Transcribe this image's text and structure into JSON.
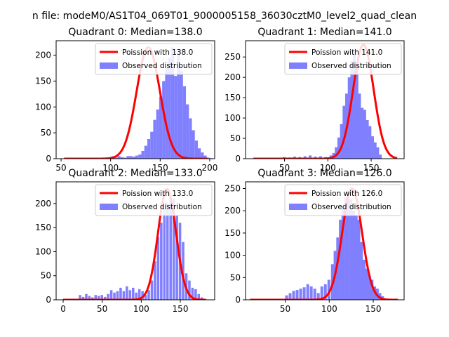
{
  "figure": {
    "suptitle": "n file: modeM0/AS1T04_069T01_9000005158_36030cztM0_level2_quad_clean"
  },
  "colors": {
    "hist": "#8080ff",
    "curve": "#ff0000",
    "axis": "#000000"
  },
  "chart_data": [
    {
      "type": "histogram",
      "title": "Quadrant 0: Median=138.0",
      "median": 138.0,
      "xlim": [
        45,
        205
      ],
      "ylim": [
        0,
        228
      ],
      "xticks": [
        50,
        100,
        150,
        200
      ],
      "yticks": [
        0,
        50,
        100,
        150,
        200
      ],
      "legend": {
        "placement": "upper right",
        "curve_label": "Poission with 138.0",
        "hist_label": "Observed distribution"
      },
      "hist_bins": {
        "start": 53,
        "width": 3.0,
        "counts": [
          0,
          0,
          0,
          0,
          0,
          0,
          0,
          0,
          0,
          0,
          0,
          0,
          0,
          0,
          0,
          0,
          5,
          2,
          5,
          3,
          2,
          5,
          5,
          4,
          6,
          8,
          15,
          25,
          38,
          52,
          75,
          95,
          120,
          150,
          175,
          195,
          215,
          160,
          210,
          170,
          140,
          105,
          78,
          55,
          35,
          20,
          12,
          6,
          2,
          1,
          0,
          0,
          0,
          0,
          0,
          0,
          0,
          0,
          0,
          0,
          0,
          0,
          0,
          0,
          0,
          0
        ]
      },
      "curve": {
        "x_start": 53,
        "x_end": 198,
        "peak": 215
      }
    },
    {
      "type": "histogram",
      "title": "Quadrant 1: Median=141.0",
      "median": 141.0,
      "xlim": [
        5,
        188
      ],
      "ylim": [
        0,
        290
      ],
      "xticks": [
        50,
        100,
        150
      ],
      "yticks": [
        0,
        50,
        100,
        150,
        200,
        250
      ],
      "legend": {
        "placement": "upper right",
        "curve_label": "Poission with 141.0",
        "hist_label": "Observed distribution"
      },
      "hist_bins": {
        "start": 14,
        "width": 3.0,
        "counts": [
          0,
          0,
          0,
          0,
          0,
          0,
          0,
          0,
          0,
          0,
          0,
          0,
          0,
          0,
          0,
          0,
          0,
          0,
          0,
          0,
          0,
          0,
          0,
          0,
          0,
          0,
          0,
          0,
          0,
          0,
          0,
          0,
          0,
          0,
          0,
          0,
          0,
          0,
          0,
          0,
          0,
          0,
          0,
          0,
          0,
          0,
          0,
          0,
          0,
          0,
          0,
          0,
          0,
          0,
          0,
          0,
          0,
          0,
          0,
          0
        ]
      },
      "hist_pattern": [
        [
          48,
          4
        ],
        [
          54,
          3
        ],
        [
          60,
          5
        ],
        [
          66,
          4
        ],
        [
          72,
          6
        ],
        [
          78,
          8
        ],
        [
          84,
          5
        ],
        [
          90,
          6
        ],
        [
          96,
          4
        ],
        [
          102,
          8
        ],
        [
          105,
          14
        ],
        [
          108,
          28
        ],
        [
          111,
          52
        ],
        [
          114,
          85
        ],
        [
          117,
          130
        ],
        [
          120,
          160
        ],
        [
          123,
          200
        ],
        [
          126,
          240
        ],
        [
          129,
          270
        ],
        [
          132,
          235
        ],
        [
          135,
          160
        ],
        [
          138,
          125
        ],
        [
          141,
          120
        ],
        [
          144,
          95
        ],
        [
          147,
          80
        ],
        [
          150,
          55
        ],
        [
          153,
          40
        ],
        [
          156,
          28
        ],
        [
          159,
          10
        ]
      ],
      "curve": {
        "x_start": 14,
        "x_end": 180,
        "peak": 280
      }
    },
    {
      "type": "histogram",
      "title": "Quadrant 2: Median=133.0",
      "median": 133.0,
      "xlim": [
        -9,
        194
      ],
      "ylim": [
        0,
        245
      ],
      "xticks": [
        0,
        50,
        100,
        150
      ],
      "yticks": [
        0,
        50,
        100,
        150,
        200
      ],
      "legend": {
        "placement": "upper right",
        "curve_label": "Poission with 133.0",
        "hist_label": "Observed distribution"
      },
      "hist_bins": {
        "start": 0,
        "width": 3.0,
        "counts": []
      },
      "hist_pattern": [
        [
          20,
          10
        ],
        [
          24,
          6
        ],
        [
          28,
          12
        ],
        [
          32,
          8
        ],
        [
          36,
          5
        ],
        [
          40,
          10
        ],
        [
          44,
          8
        ],
        [
          48,
          10
        ],
        [
          52,
          6
        ],
        [
          56,
          12
        ],
        [
          60,
          20
        ],
        [
          64,
          15
        ],
        [
          68,
          18
        ],
        [
          72,
          25
        ],
        [
          76,
          18
        ],
        [
          80,
          28
        ],
        [
          84,
          20
        ],
        [
          88,
          25
        ],
        [
          92,
          15
        ],
        [
          96,
          22
        ],
        [
          100,
          18
        ],
        [
          104,
          10
        ],
        [
          108,
          20
        ],
        [
          112,
          40
        ],
        [
          116,
          80
        ],
        [
          120,
          130
        ],
        [
          124,
          160
        ],
        [
          128,
          190
        ],
        [
          132,
          200
        ],
        [
          136,
          210
        ],
        [
          140,
          210
        ],
        [
          144,
          175
        ],
        [
          148,
          160
        ],
        [
          152,
          120
        ],
        [
          156,
          55
        ],
        [
          160,
          40
        ],
        [
          164,
          25
        ],
        [
          168,
          22
        ],
        [
          172,
          12
        ],
        [
          176,
          5
        ]
      ],
      "curve": {
        "x_start": 0,
        "x_end": 183,
        "peak": 230
      }
    },
    {
      "type": "histogram",
      "title": "Quadrant 3: Median=126.0",
      "median": 126.0,
      "xlim": [
        5,
        185
      ],
      "ylim": [
        0,
        265
      ],
      "xticks": [
        50,
        100,
        150
      ],
      "yticks": [
        0,
        50,
        100,
        150,
        200,
        250
      ],
      "legend": {
        "placement": "upper right",
        "curve_label": "Poission with 126.0",
        "hist_label": "Observed distribution"
      },
      "hist_bins": {
        "start": 0,
        "width": 3.0,
        "counts": []
      },
      "hist_pattern": [
        [
          50,
          10
        ],
        [
          54,
          15
        ],
        [
          58,
          20
        ],
        [
          62,
          22
        ],
        [
          66,
          25
        ],
        [
          70,
          28
        ],
        [
          74,
          35
        ],
        [
          78,
          30
        ],
        [
          82,
          25
        ],
        [
          86,
          15
        ],
        [
          90,
          30
        ],
        [
          94,
          35
        ],
        [
          98,
          45
        ],
        [
          102,
          80
        ],
        [
          105,
          110
        ],
        [
          108,
          140
        ],
        [
          111,
          180
        ],
        [
          114,
          210
        ],
        [
          117,
          230
        ],
        [
          120,
          245
        ],
        [
          123,
          225
        ],
        [
          126,
          200
        ],
        [
          129,
          190
        ],
        [
          132,
          180
        ],
        [
          135,
          130
        ],
        [
          138,
          90
        ],
        [
          141,
          70
        ],
        [
          144,
          55
        ],
        [
          147,
          45
        ],
        [
          150,
          30
        ],
        [
          153,
          25
        ],
        [
          156,
          15
        ],
        [
          159,
          8
        ]
      ],
      "curve": {
        "x_start": 10,
        "x_end": 178,
        "peak": 250
      }
    }
  ]
}
